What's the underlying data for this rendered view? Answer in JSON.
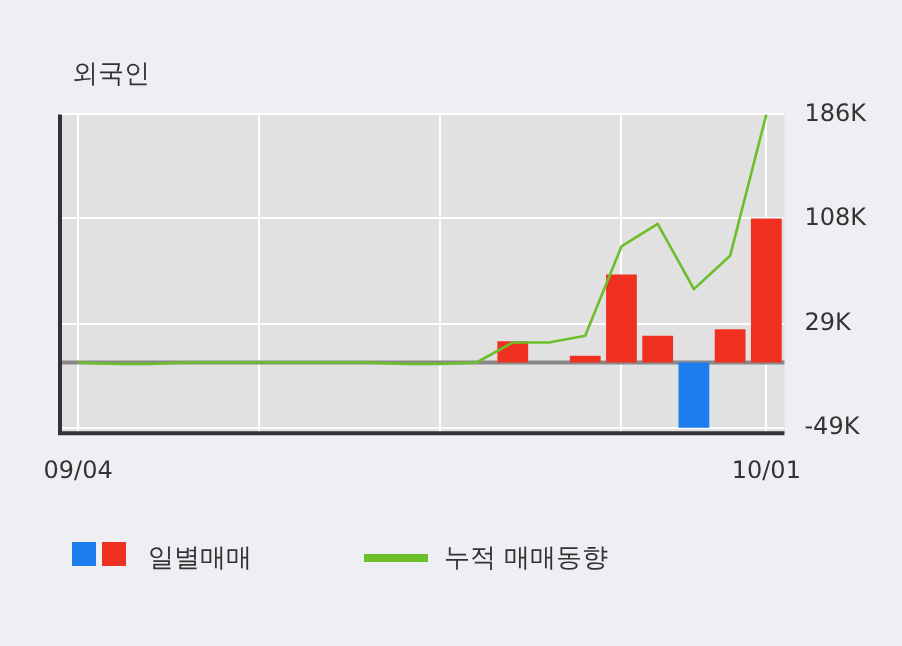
{
  "chart_data": {
    "type": "bar",
    "title": "외국인",
    "categories": [
      "09/04",
      null,
      null,
      null,
      null,
      null,
      null,
      null,
      null,
      null,
      null,
      null,
      null,
      null,
      null,
      null,
      null,
      null,
      null,
      "10/01"
    ],
    "series": [
      {
        "name": "일별매매",
        "colors": [
          null,
          null,
          null,
          null,
          null,
          null,
          null,
          null,
          null,
          null,
          null,
          null,
          "#f03020",
          null,
          "#f03020",
          "#f03020",
          "#f03020",
          "#1e7ef0",
          "#f03020",
          "#f03020"
        ],
        "values": [
          null,
          null,
          null,
          null,
          null,
          null,
          null,
          null,
          null,
          null,
          null,
          null,
          16,
          null,
          5,
          66,
          20,
          -49,
          25,
          108
        ]
      },
      {
        "name": "누적 매매동향",
        "type": "line",
        "color": "#6cbf2a",
        "values": [
          0,
          -1,
          -1,
          0,
          0,
          0,
          0,
          0,
          0,
          -1,
          -1,
          0,
          15,
          15,
          20,
          87,
          104,
          55,
          80,
          186
        ]
      }
    ],
    "ylim": [
      -53,
      186
    ],
    "yticks": [
      {
        "value": -49,
        "label": "-49K"
      },
      {
        "value": 29,
        "label": "29K"
      },
      {
        "value": 108,
        "label": "108K"
      },
      {
        "value": 186,
        "label": "186K"
      }
    ],
    "ref_lines": [
      {
        "axis": "y",
        "value": 0,
        "color": "#888888"
      }
    ],
    "grid": true,
    "legend": "bottom",
    "marker": "none"
  }
}
